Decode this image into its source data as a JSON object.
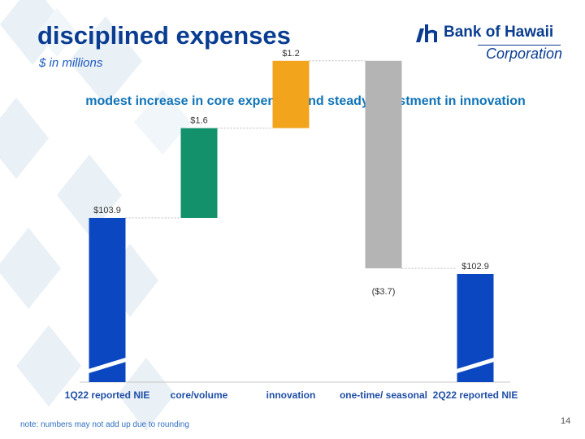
{
  "slide": {
    "title": "disciplined expenses",
    "subtitle": "$ in millions",
    "footnote": "note: numbers may not add up due to rounding",
    "page_number": "14"
  },
  "logo": {
    "name": "Bank of Hawaii",
    "corporation": "Corporation"
  },
  "colors": {
    "title": "#0a3d91",
    "blue_bar": "#0b47c1",
    "green_bar": "#12916a",
    "orange_bar": "#f2a51c",
    "gray_bar": "#b4b4b4",
    "chart_title": "#0f73b8"
  },
  "chart_data": {
    "type": "bar",
    "subtype": "waterfall",
    "title": "modest increase in core expenses and steady investment in innovation",
    "categories": [
      "1Q22 reported NIE",
      "core/volume",
      "innovation",
      "one-time/ seasonal",
      "2Q22 reported NIE"
    ],
    "values": [
      103.9,
      1.6,
      1.2,
      -3.7,
      102.9
    ],
    "kinds": [
      "total",
      "delta",
      "delta",
      "delta",
      "total"
    ],
    "data_labels": [
      "$103.9",
      "$1.6",
      "$1.2",
      "($3.7)",
      "$102.9"
    ],
    "bar_colors": [
      "#0b47c1",
      "#12916a",
      "#f2a51c",
      "#b4b4b4",
      "#0b47c1"
    ],
    "axis_break": true,
    "grid": false,
    "legend": "none"
  }
}
